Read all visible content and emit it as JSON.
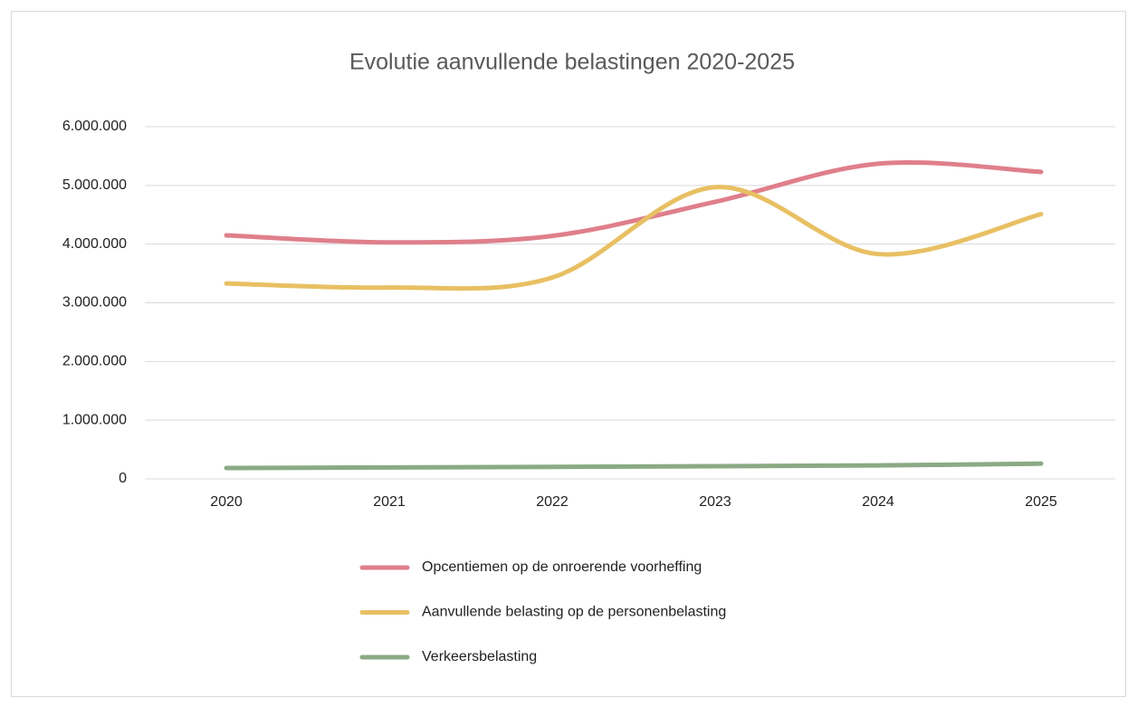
{
  "chart_data": {
    "type": "line",
    "title": "Evolutie aanvullende belastingen 2020-2025",
    "categories": [
      "2020",
      "2021",
      "2022",
      "2023",
      "2024",
      "2025"
    ],
    "series": [
      {
        "name": "Opcentiemen op de onroerende voorheffing",
        "color": "#df7f8b",
        "values": [
          4150000,
          4030000,
          4140000,
          4720000,
          5370000,
          5230000
        ]
      },
      {
        "name": "Aanvullende belasting op de personenbelasting",
        "color": "#e8c063",
        "values": [
          3330000,
          3260000,
          3430000,
          4970000,
          3830000,
          4510000
        ]
      },
      {
        "name": "Verkeersbelasting",
        "color": "#8aaa84",
        "values": [
          185000,
          195000,
          205000,
          215000,
          230000,
          260000
        ]
      }
    ],
    "ylim": [
      0,
      6000000
    ],
    "yticks": [
      0,
      {
        "value": 1000000,
        "label": "1.000.000"
      },
      {
        "value": 2000000,
        "label": "2.000.000"
      },
      {
        "value": 3000000,
        "label": "3.000.000"
      },
      {
        "value": 4000000,
        "label": "4.000.000"
      },
      {
        "value": 5000000,
        "label": "5.000.000"
      },
      {
        "value": 6000000,
        "label": "6.000.000"
      }
    ],
    "grid": true,
    "smooth": true,
    "legend": "bottom"
  }
}
